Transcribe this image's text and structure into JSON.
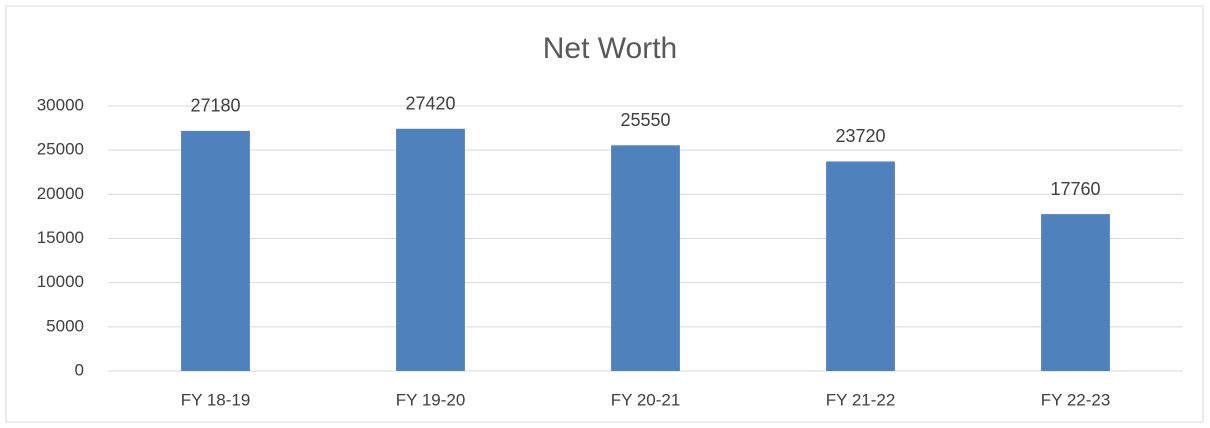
{
  "chart_data": {
    "type": "bar",
    "title": "Net Worth",
    "categories": [
      "FY 18-19",
      "FY 19-20",
      "FY 20-21",
      "FY 21-22",
      "FY 22-23"
    ],
    "values": [
      27180,
      27420,
      25550,
      23720,
      17760
    ],
    "color": "#4f81bd",
    "ylim": [
      0,
      30000
    ],
    "yticks": [
      0,
      5000,
      10000,
      15000,
      20000,
      25000,
      30000
    ],
    "grid": true
  }
}
